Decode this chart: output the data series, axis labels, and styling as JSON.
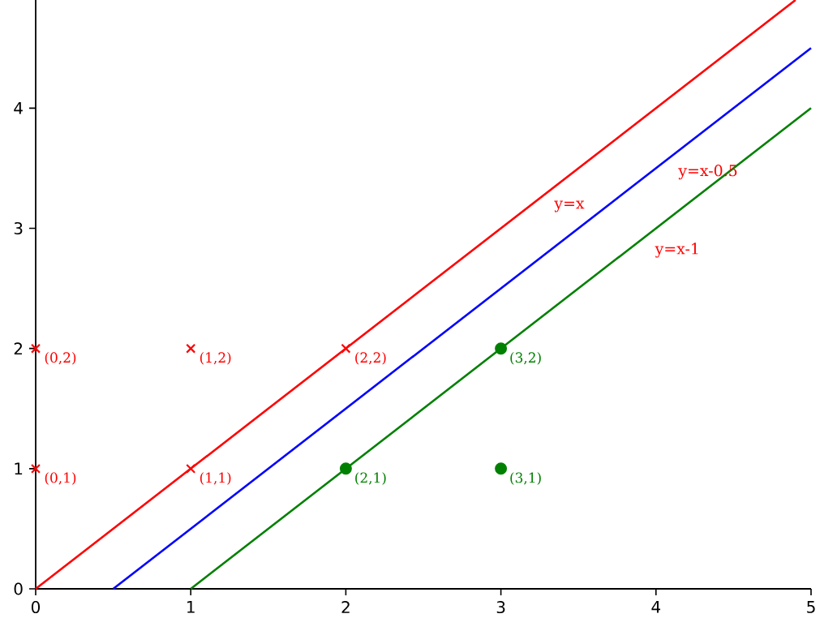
{
  "chart_data": {
    "type": "line",
    "xlim": [
      0,
      5
    ],
    "ylim": [
      0,
      4.9
    ],
    "xticks": [
      0,
      1,
      2,
      3,
      4,
      5
    ],
    "yticks": [
      0,
      1,
      2,
      3,
      4
    ],
    "series": [
      {
        "color": "#ff0000",
        "x": [
          0,
          4.9
        ],
        "values": [
          0,
          4.9
        ],
        "marker": "none"
      },
      {
        "color": "#0000ff",
        "x": [
          0.5,
          5
        ],
        "values": [
          0,
          4.5
        ],
        "marker": "none"
      },
      {
        "color": "#008000",
        "x": [
          1,
          5
        ],
        "values": [
          0,
          4
        ],
        "marker": "none"
      },
      {
        "type": "scatter",
        "color": "#ff0000",
        "x": [
          0,
          0,
          1,
          1,
          2
        ],
        "values": [
          1,
          2,
          1,
          2,
          2
        ],
        "marker": "cross"
      },
      {
        "type": "scatter",
        "color": "#008000",
        "x": [
          2,
          3,
          3
        ],
        "values": [
          1,
          1,
          2
        ],
        "marker": "circle"
      }
    ],
    "annotations": [
      {
        "text": "(0,1)",
        "x": 0,
        "y": 1
      },
      {
        "text": "(0,2)",
        "x": 0,
        "y": 2
      },
      {
        "text": "(1,1)",
        "x": 1,
        "y": 1
      },
      {
        "text": "(1,2)",
        "x": 1,
        "y": 2
      },
      {
        "text": "(2,2)",
        "x": 2,
        "y": 2
      },
      {
        "text": "(2,1)",
        "x": 2,
        "y": 1
      },
      {
        "text": "(3,1)",
        "x": 3,
        "y": 1
      },
      {
        "text": "(3,2)",
        "x": 3,
        "y": 2
      },
      {
        "text": "y=x",
        "x": 3.3,
        "y": 3.3
      },
      {
        "text": "y=x-0.5",
        "x": 4.1,
        "y": 3.6
      },
      {
        "text": "y=x-1",
        "x": 3.95,
        "y": 2.95
      }
    ]
  }
}
